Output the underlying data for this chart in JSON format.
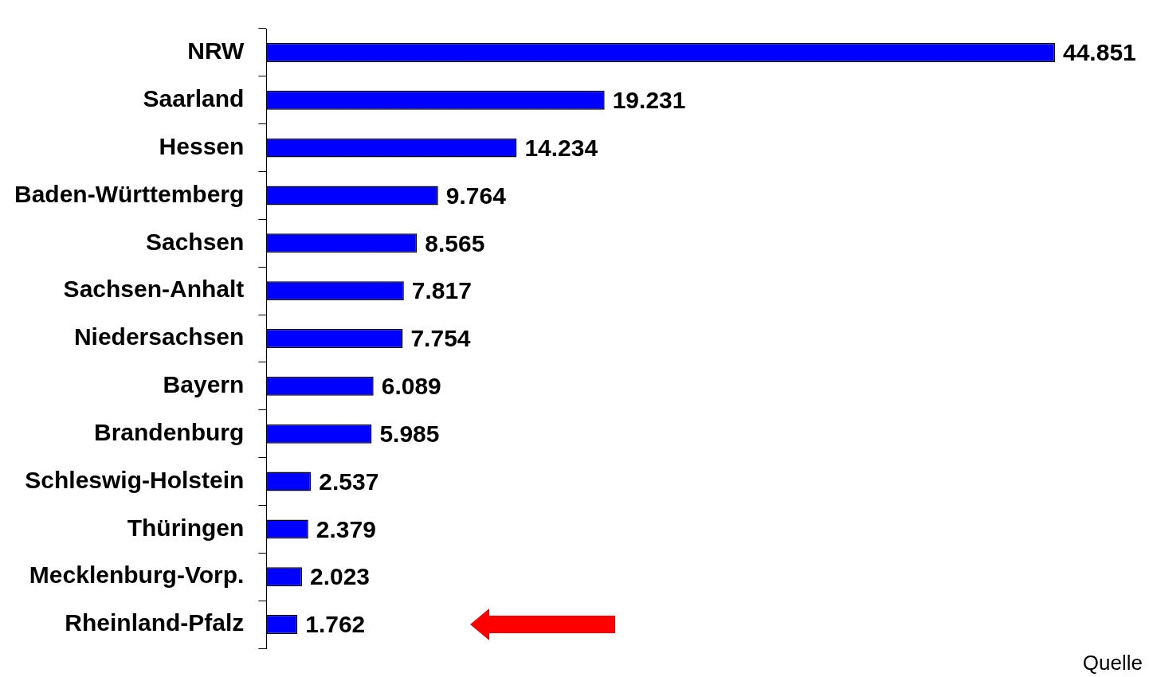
{
  "chart_data": {
    "type": "bar",
    "orientation": "horizontal",
    "categories": [
      "NRW",
      "Saarland",
      "Hessen",
      "Baden-Württemberg",
      "Sachsen",
      "Sachsen-Anhalt",
      "Niedersachsen",
      "Bayern",
      "Brandenburg",
      "Schleswig-Holstein",
      "Thüringen",
      "Mecklenburg-Vorp.",
      "Rheinland-Pfalz"
    ],
    "values": [
      44851,
      19231,
      14234,
      9764,
      8565,
      7817,
      7754,
      6089,
      5985,
      2537,
      2379,
      2023,
      1762
    ],
    "value_labels": [
      "44.851",
      "19.231",
      "14.234",
      "9.764",
      "8.565",
      "7.817",
      "7.754",
      "6.089",
      "5.985",
      "2.537",
      "2.379",
      "2.023",
      "1.762"
    ],
    "color": "#0000ff",
    "tick_labels": "y",
    "annotations": [
      "Quelle"
    ]
  }
}
